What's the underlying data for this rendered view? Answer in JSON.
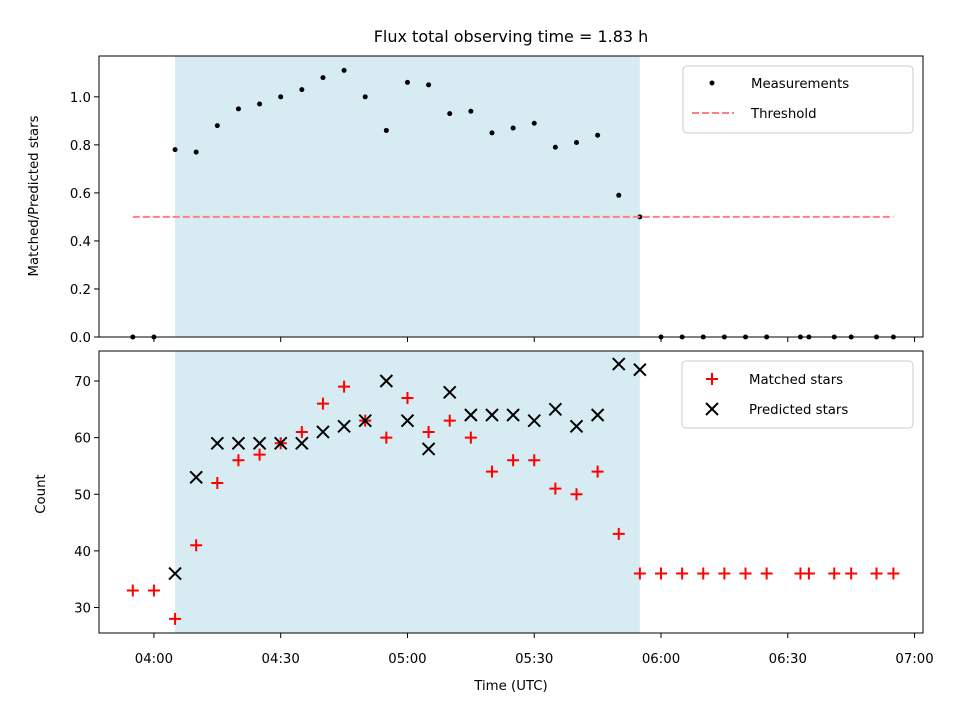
{
  "chart_data": [
    {
      "type": "scatter",
      "title": "Flux total observing time = 1.83 h",
      "xlabel": "",
      "ylabel": "Matched/Predicted stars",
      "xlim": [
        "03:47",
        "07:02"
      ],
      "ylim": [
        0,
        1.17
      ],
      "yticks": [
        "0.0",
        "0.2",
        "0.4",
        "0.6",
        "0.8",
        "1.0"
      ],
      "grid": false,
      "legend_position": "top-right",
      "highlight_span": {
        "start": "04:05",
        "end": "05:55",
        "color": "#add8e6"
      },
      "series": [
        {
          "name": "Measurements",
          "marker": "dot",
          "color": "#000000",
          "x": [
            "03:55",
            "04:00",
            "04:05",
            "04:10",
            "04:15",
            "04:20",
            "04:25",
            "04:30",
            "04:35",
            "04:40",
            "04:45",
            "04:50",
            "04:55",
            "05:00",
            "05:05",
            "05:10",
            "05:15",
            "05:20",
            "05:25",
            "05:30",
            "05:35",
            "05:40",
            "05:45",
            "05:50",
            "05:55",
            "06:00",
            "06:05",
            "06:10",
            "06:15",
            "06:20",
            "06:25",
            "06:33",
            "06:35",
            "06:41",
            "06:45",
            "06:51",
            "06:55"
          ],
          "y": [
            0,
            0,
            0.78,
            0.77,
            0.88,
            0.95,
            0.97,
            1.0,
            1.03,
            1.08,
            1.11,
            1.0,
            0.86,
            1.06,
            1.05,
            0.93,
            0.94,
            0.85,
            0.87,
            0.89,
            0.79,
            0.81,
            0.84,
            0.59,
            0.5,
            0,
            0,
            0,
            0,
            0,
            0,
            0,
            0,
            0,
            0,
            0,
            0
          ]
        },
        {
          "name": "Threshold",
          "type": "line",
          "style": "dashed",
          "color": "#ff7f7f",
          "x": [
            "03:55",
            "06:55"
          ],
          "y": [
            0.5,
            0.5
          ]
        }
      ]
    },
    {
      "type": "scatter",
      "title": "",
      "xlabel": "Time (UTC)",
      "ylabel": "Count",
      "xlim": [
        "03:47",
        "07:02"
      ],
      "ylim": [
        25.5,
        75.3
      ],
      "xticks": [
        "04:00",
        "04:30",
        "05:00",
        "05:30",
        "06:00",
        "06:30",
        "07:00"
      ],
      "yticks": [
        "30",
        "40",
        "50",
        "60",
        "70"
      ],
      "grid": false,
      "legend_position": "top-right",
      "highlight_span": {
        "start": "04:05",
        "end": "05:55",
        "color": "#add8e6"
      },
      "series": [
        {
          "name": "Matched stars",
          "marker": "plus",
          "color": "#ff0000",
          "x": [
            "03:55",
            "04:00",
            "04:05",
            "04:10",
            "04:15",
            "04:20",
            "04:25",
            "04:30",
            "04:35",
            "04:40",
            "04:45",
            "04:50",
            "04:55",
            "05:00",
            "05:05",
            "05:10",
            "05:15",
            "05:20",
            "05:25",
            "05:30",
            "05:35",
            "05:40",
            "05:45",
            "05:50",
            "05:55",
            "06:00",
            "06:05",
            "06:10",
            "06:15",
            "06:20",
            "06:25",
            "06:33",
            "06:35",
            "06:41",
            "06:45",
            "06:51",
            "06:55"
          ],
          "y": [
            33,
            33,
            28,
            41,
            52,
            56,
            57,
            59,
            61,
            66,
            69,
            63,
            60,
            67,
            61,
            63,
            60,
            54,
            56,
            56,
            51,
            50,
            54,
            43,
            36,
            36,
            36,
            36,
            36,
            36,
            36,
            36,
            36,
            36,
            36,
            36,
            36
          ]
        },
        {
          "name": "Predicted stars",
          "marker": "x",
          "color": "#000000",
          "x": [
            "04:05",
            "04:10",
            "04:15",
            "04:20",
            "04:25",
            "04:30",
            "04:35",
            "04:40",
            "04:45",
            "04:50",
            "04:55",
            "05:00",
            "05:05",
            "05:10",
            "05:15",
            "05:20",
            "05:25",
            "05:30",
            "05:35",
            "05:40",
            "05:45",
            "05:50",
            "05:55"
          ],
          "y": [
            36,
            53,
            59,
            59,
            59,
            59,
            59,
            61,
            62,
            63,
            70,
            63,
            58,
            68,
            64,
            64,
            64,
            63,
            65,
            62,
            64,
            73,
            72
          ]
        }
      ]
    }
  ]
}
